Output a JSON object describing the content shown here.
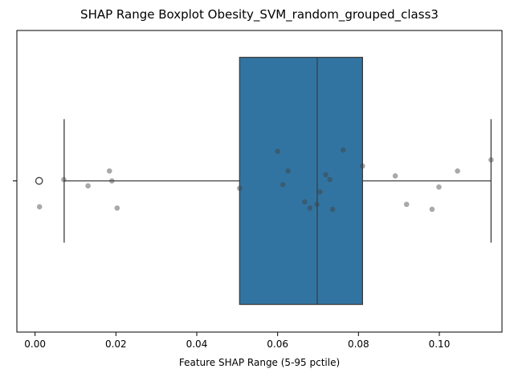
{
  "chart_data": {
    "type": "box",
    "title": "SHAP Range Boxplot Obesity_SVM_random_grouped_class3",
    "xlabel": "Feature SHAP Range (5-95 pctile)",
    "ylabel": "",
    "xlim": [
      -0.0045,
      0.1155
    ],
    "x_ticks": [
      0.0,
      0.02,
      0.04,
      0.06,
      0.08,
      0.1
    ],
    "x_tick_labels": [
      "0.00",
      "0.02",
      "0.04",
      "0.06",
      "0.08",
      "0.10"
    ],
    "grid": false,
    "box": {
      "whisker_low": 0.0072,
      "q1": 0.0506,
      "median": 0.0698,
      "q3": 0.081,
      "whisker_high": 0.1128,
      "fliers": [
        0.001
      ],
      "color": "#3274a1"
    },
    "points": {
      "color": "#404040",
      "values": [
        {
          "x": 0.0011,
          "jitter": 0.21
        },
        {
          "x": 0.0071,
          "jitter": -0.01
        },
        {
          "x": 0.0131,
          "jitter": 0.04
        },
        {
          "x": 0.0184,
          "jitter": -0.08
        },
        {
          "x": 0.019,
          "jitter": 0.0
        },
        {
          "x": 0.0203,
          "jitter": 0.22
        },
        {
          "x": 0.0506,
          "jitter": 0.06
        },
        {
          "x": 0.06,
          "jitter": -0.24
        },
        {
          "x": 0.0613,
          "jitter": 0.03
        },
        {
          "x": 0.0626,
          "jitter": -0.08
        },
        {
          "x": 0.0667,
          "jitter": 0.17
        },
        {
          "x": 0.068,
          "jitter": 0.22
        },
        {
          "x": 0.0697,
          "jitter": 0.19
        },
        {
          "x": 0.0705,
          "jitter": 0.09
        },
        {
          "x": 0.0719,
          "jitter": -0.05
        },
        {
          "x": 0.0729,
          "jitter": -0.01
        },
        {
          "x": 0.0736,
          "jitter": 0.23
        },
        {
          "x": 0.0762,
          "jitter": -0.25
        },
        {
          "x": 0.081,
          "jitter": -0.12
        },
        {
          "x": 0.0891,
          "jitter": -0.04
        },
        {
          "x": 0.0919,
          "jitter": 0.19
        },
        {
          "x": 0.0982,
          "jitter": 0.23
        },
        {
          "x": 0.0999,
          "jitter": 0.05
        },
        {
          "x": 0.1045,
          "jitter": -0.08
        },
        {
          "x": 0.1128,
          "jitter": -0.17
        }
      ]
    }
  }
}
